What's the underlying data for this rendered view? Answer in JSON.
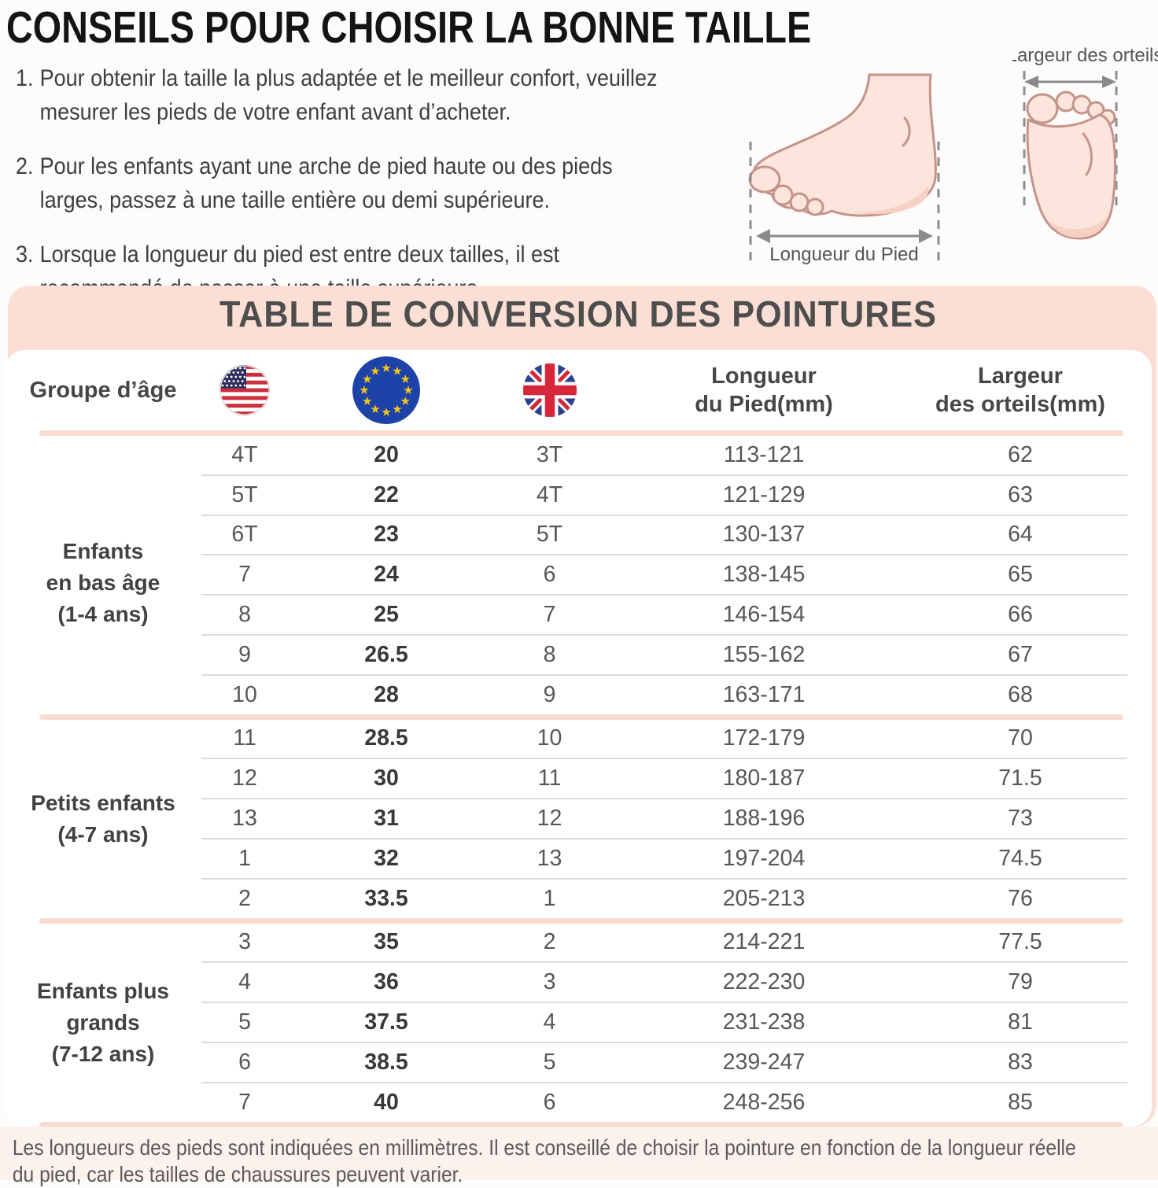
{
  "page": {
    "title": "CONSEILS POUR CHOISIR LA BONNE TAILLE"
  },
  "tips": [
    {
      "num": "1.",
      "lines": [
        "Pour obtenir la taille la plus adaptée et le meilleur confort, veuillez",
        "mesurer les pieds de votre enfant avant d’acheter."
      ]
    },
    {
      "num": "2.",
      "lines": [
        "Pour les enfants ayant une arche de pied haute ou des pieds",
        "larges, passez à une taille entière ou demi supérieure."
      ]
    },
    {
      "num": "3.",
      "lines": [
        "Lorsque la longueur du pied est entre deux tailles, il est",
        "recommandé de passer à une taille supérieure."
      ]
    }
  ],
  "diagram": {
    "foot_length_label": "Longueur du Pied",
    "toe_width_label": "Largeur des orteils"
  },
  "table": {
    "title": "TABLE DE CONVERSION DES POINTURES",
    "header": {
      "age_group": "Groupe d’âge",
      "us_flag_icon": "us-flag",
      "eu_flag_icon": "eu-flag",
      "uk_flag_icon": "uk-flag",
      "foot_length": [
        "Longueur",
        "du Pied(mm)"
      ],
      "toe_width": [
        "Largeur",
        "des orteils(mm)"
      ]
    },
    "groups": [
      {
        "label_lines": [
          "Enfants",
          "en bas âge",
          "(1-4 ans)"
        ],
        "rows": [
          [
            "4T",
            "20",
            "3T",
            "113-121",
            "62"
          ],
          [
            "5T",
            "22",
            "4T",
            "121-129",
            "63"
          ],
          [
            "6T",
            "23",
            "5T",
            "130-137",
            "64"
          ],
          [
            "7",
            "24",
            "6",
            "138-145",
            "65"
          ],
          [
            "8",
            "25",
            "7",
            "146-154",
            "66"
          ],
          [
            "9",
            "26.5",
            "8",
            "155-162",
            "67"
          ],
          [
            "10",
            "28",
            "9",
            "163-171",
            "68"
          ]
        ]
      },
      {
        "label_lines": [
          "Petits enfants",
          "(4-7 ans)"
        ],
        "rows": [
          [
            "11",
            "28.5",
            "10",
            "172-179",
            "70"
          ],
          [
            "12",
            "30",
            "11",
            "180-187",
            "71.5"
          ],
          [
            "13",
            "31",
            "12",
            "188-196",
            "73"
          ],
          [
            "1",
            "32",
            "13",
            "197-204",
            "74.5"
          ],
          [
            "2",
            "33.5",
            "1",
            "205-213",
            "76"
          ]
        ]
      },
      {
        "label_lines": [
          "Enfants plus",
          "grands",
          "(7-12 ans)"
        ],
        "rows": [
          [
            "3",
            "35",
            "2",
            "214-221",
            "77.5"
          ],
          [
            "4",
            "36",
            "3",
            "222-230",
            "79"
          ],
          [
            "5",
            "37.5",
            "4",
            "231-238",
            "81"
          ],
          [
            "6",
            "38.5",
            "5",
            "239-247",
            "83"
          ],
          [
            "7",
            "40",
            "6",
            "248-256",
            "85"
          ]
        ]
      }
    ]
  },
  "footnote": {
    "text": "Les longueurs des pieds sont indiquées en millimètres. Il est conseillé de choisir la pointure en fonction de la longueur réelle du pied, car les tailles de chaussures peuvent varier.",
    "lines": [
      "Les longueurs des pieds sont indiquées en millimètres. Il est conseillé de choisir la pointure en fonction de la longueur réelle",
      "du pied, car les tailles de chaussures peuvent varier."
    ]
  },
  "colors": {
    "panel_pink": "#fbdfd5",
    "separator_pink": "#f8dcd2",
    "footer_pink": "#fcf1ec",
    "row_line_gray": "#dbdbdb",
    "text_dark": "#3b3b3b",
    "foot_fill": "#fce5dc",
    "foot_stroke": "#c4938a",
    "foot_shade": "#f6d0c3",
    "eu_blue": "#1e43a8",
    "flag_red": "#cc2e3e",
    "star_yellow": "#f0c419"
  }
}
